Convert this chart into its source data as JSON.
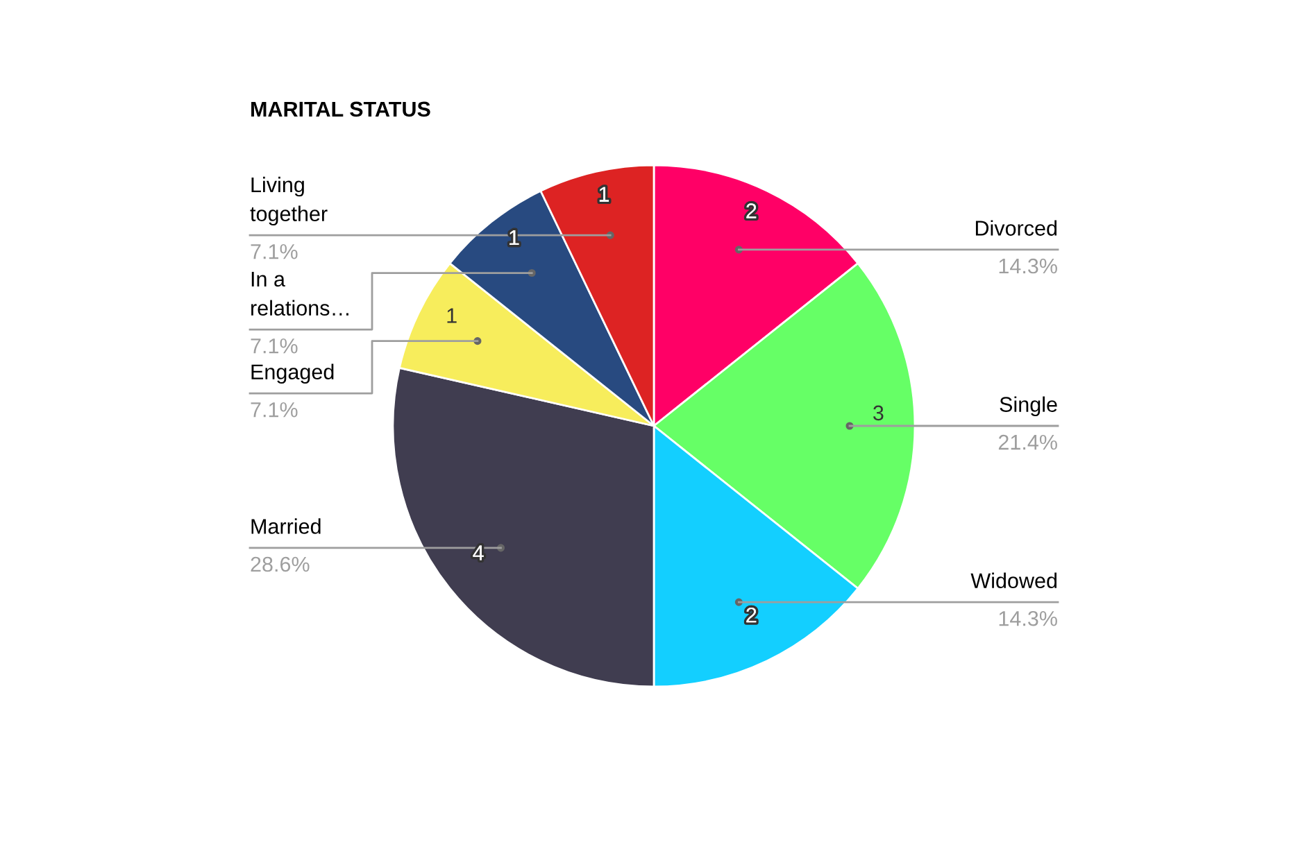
{
  "chart_data": {
    "type": "pie",
    "title": "MARITAL STATUS",
    "categories": [
      "Divorced",
      "Single",
      "Widowed",
      "Married",
      "Engaged",
      "In a relations…",
      "Living together"
    ],
    "values": [
      2,
      3,
      2,
      4,
      1,
      1,
      1
    ],
    "colors": [
      "#ff0066",
      "#66ff66",
      "#13cfff",
      "#403d50",
      "#f7ed5c",
      "#284a80",
      "#dd2323"
    ],
    "data_labels": true,
    "annotations": [
      "14.3%",
      "21.4%",
      "14.3%",
      "28.6%",
      "7.1%",
      "7.1%",
      "7.1%"
    ],
    "legend": false
  }
}
